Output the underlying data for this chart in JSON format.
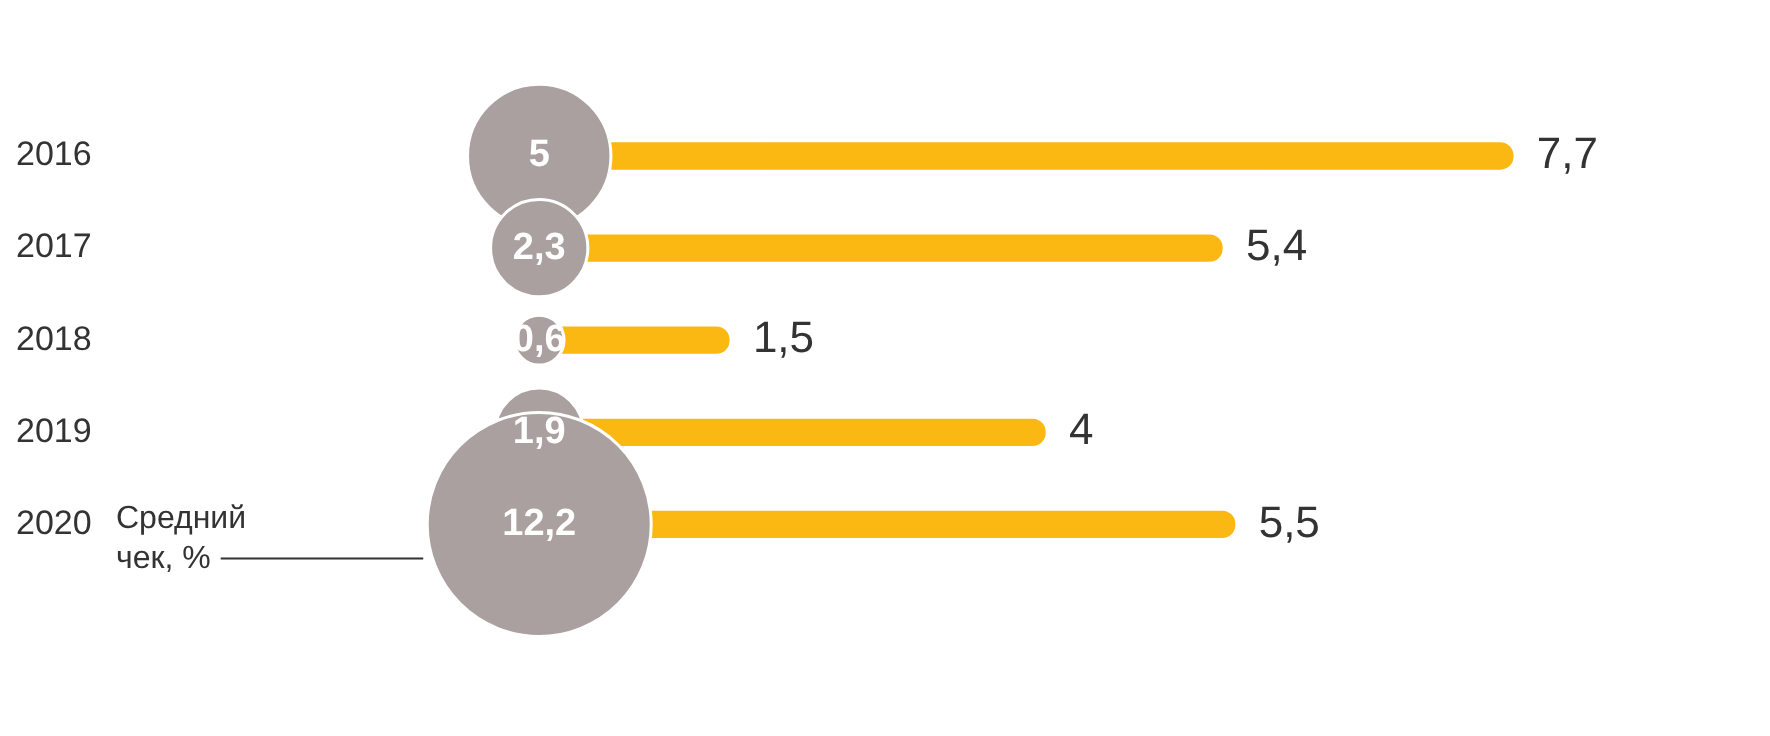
{
  "chart_data": {
    "type": "bar",
    "orientation": "horizontal",
    "categories": [
      "2016",
      "2017",
      "2018",
      "2019",
      "2020"
    ],
    "series": [
      {
        "type": "bar",
        "color": "#fbb813",
        "values": [
          7.7,
          5.4,
          1.5,
          4,
          5.5
        ],
        "value_labels": [
          "7,7",
          "5,4",
          "1,5",
          "4",
          "5,5"
        ]
      },
      {
        "type": "bubble",
        "name": "Средний чек, %",
        "color": "#aaa09f",
        "values": [
          0,
          0,
          0,
          0,
          0
        ],
        "sizes": [
          5,
          2.3,
          0.6,
          1.9,
          12.2
        ],
        "value_labels": [
          "5",
          "2,3",
          "0,6",
          "1,9",
          "12,2"
        ]
      }
    ]
  }
}
